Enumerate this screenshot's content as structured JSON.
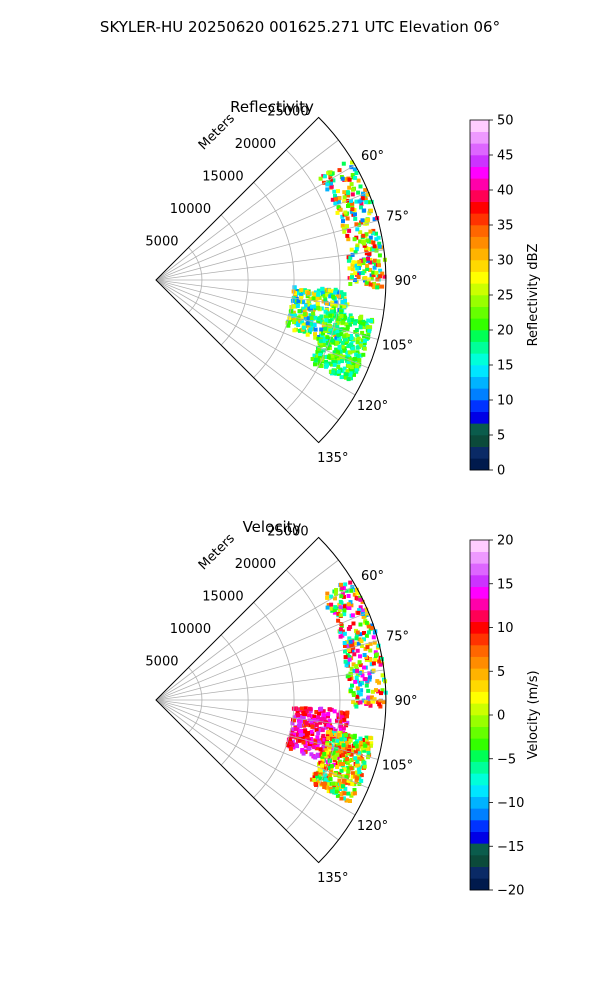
{
  "suptitle": "SKYLER-HU  20250620  001625.271 UTC Elevation 06°",
  "panels": [
    {
      "title": "Reflectivity",
      "range_label": "Meters",
      "range_ticks": [
        "5000",
        "10000",
        "15000",
        "20000",
        "25000"
      ],
      "azimuth_ticks": [
        "60°",
        "75°",
        "90°",
        "105°",
        "120°",
        "135°"
      ],
      "colorbar": {
        "label": "Reflectivity dBZ",
        "ticks": [
          "0",
          "5",
          "10",
          "15",
          "20",
          "25",
          "30",
          "35",
          "40",
          "45",
          "50"
        ],
        "colors": [
          "#001a4d",
          "#0a2a66",
          "#0b4a3a",
          "#0a5c4c",
          "#0000e6",
          "#0033ff",
          "#0080ff",
          "#00b3ff",
          "#00e6ff",
          "#00ffd9",
          "#00ff99",
          "#00ff55",
          "#33ff00",
          "#66ff00",
          "#99ff00",
          "#ccff00",
          "#ffff00",
          "#ffd900",
          "#ffb300",
          "#ff8c00",
          "#ff6600",
          "#ff3300",
          "#ff0000",
          "#ff0055",
          "#ff00aa",
          "#ff00ff",
          "#cc33ff",
          "#dd66ff",
          "#ee99ff",
          "#ffccff"
        ]
      }
    },
    {
      "title": "Velocity",
      "range_label": "Meters",
      "range_ticks": [
        "5000",
        "10000",
        "15000",
        "20000",
        "25000"
      ],
      "azimuth_ticks": [
        "60°",
        "75°",
        "90°",
        "105°",
        "120°",
        "135°"
      ],
      "colorbar": {
        "label": "Velocity (m/s)",
        "ticks": [
          "−20",
          "−15",
          "−10",
          "−5",
          "0",
          "5",
          "10",
          "15",
          "20"
        ],
        "colors": [
          "#001a4d",
          "#0a2a66",
          "#0b4a3a",
          "#0a5c4c",
          "#0000e6",
          "#0033ff",
          "#0080ff",
          "#00b3ff",
          "#00e6ff",
          "#00ffd9",
          "#00ff99",
          "#00ff55",
          "#33ff00",
          "#66ff00",
          "#99ff00",
          "#ccff00",
          "#ffff00",
          "#ffd900",
          "#ffb300",
          "#ff8c00",
          "#ff6600",
          "#ff3300",
          "#ff0000",
          "#ff0055",
          "#ff00aa",
          "#ff00ff",
          "#cc33ff",
          "#dd66ff",
          "#ee99ff",
          "#ffccff"
        ]
      }
    }
  ],
  "chart_data": [
    {
      "type": "heatmap",
      "title": "Reflectivity",
      "projection": "polar sector (PPI)",
      "azimuth_range_deg": [
        45,
        135
      ],
      "range_m": [
        0,
        25000
      ],
      "range_ticks_m": [
        5000,
        10000,
        15000,
        20000,
        25000
      ],
      "azimuth_ticks_deg": [
        60,
        75,
        90,
        105,
        120,
        135
      ],
      "value_range": [
        0,
        50
      ],
      "units": "dBZ",
      "echo_regions": [
        {
          "az_deg": [
            58,
            92
          ],
          "range_m": [
            21000,
            25000
          ],
          "dbz": [
            10,
            40
          ]
        },
        {
          "az_deg": [
            93,
            110
          ],
          "range_m": [
            15000,
            21000
          ],
          "dbz": [
            10,
            32
          ]
        },
        {
          "az_deg": [
            100,
            118
          ],
          "range_m": [
            19000,
            24000
          ],
          "dbz": [
            15,
            25
          ]
        }
      ]
    },
    {
      "type": "heatmap",
      "title": "Velocity",
      "projection": "polar sector (PPI)",
      "azimuth_range_deg": [
        45,
        135
      ],
      "range_m": [
        0,
        25000
      ],
      "range_ticks_m": [
        5000,
        10000,
        15000,
        20000,
        25000
      ],
      "azimuth_ticks_deg": [
        60,
        75,
        90,
        105,
        120,
        135
      ],
      "value_range": [
        -20,
        20
      ],
      "units": "m/s",
      "echo_regions": [
        {
          "az_deg": [
            58,
            92
          ],
          "range_m": [
            21000,
            25000
          ],
          "ms": [
            -12,
            15
          ]
        },
        {
          "az_deg": [
            93,
            110
          ],
          "range_m": [
            15000,
            21000
          ],
          "ms": [
            8,
            16
          ]
        },
        {
          "az_deg": [
            100,
            118
          ],
          "range_m": [
            19000,
            24000
          ],
          "ms": [
            -8,
            10
          ]
        }
      ]
    }
  ]
}
